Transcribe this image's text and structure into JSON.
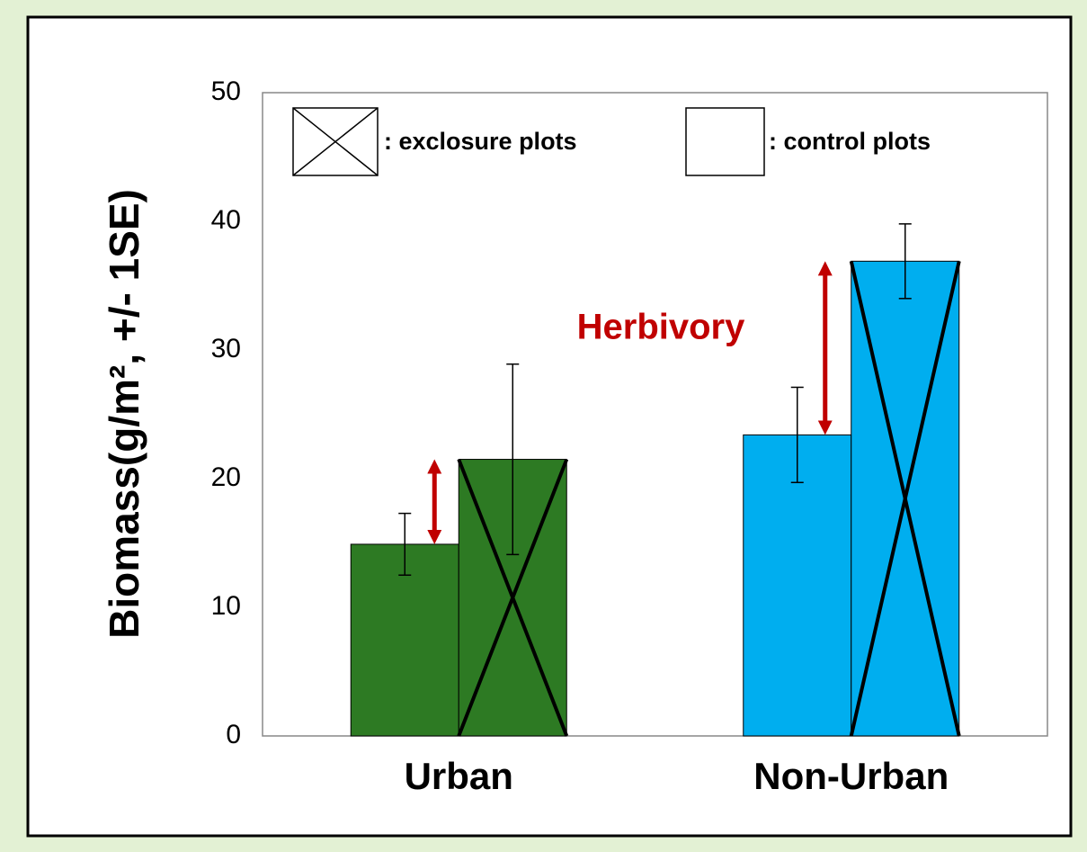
{
  "chart_data": {
    "type": "bar",
    "y_label": "Biomass(g/m², +/- 1SE)",
    "categories": [
      "Urban",
      "Non-Urban"
    ],
    "category_colors": [
      "#2d7a23",
      "#00aeef"
    ],
    "series": [
      {
        "name": ": control plots",
        "values": [
          14.9,
          23.4
        ],
        "errors": [
          2.4,
          3.7
        ]
      },
      {
        "name": ": exclosure plots",
        "values": [
          21.5,
          36.9
        ],
        "errors": [
          7.4,
          2.9
        ],
        "crossed": true
      }
    ],
    "annotation": "Herbivory",
    "annotation_color": "#c00000",
    "ylim": [
      0,
      50
    ],
    "yticks": [
      0,
      10,
      20,
      30,
      40,
      50
    ],
    "grid": false
  }
}
